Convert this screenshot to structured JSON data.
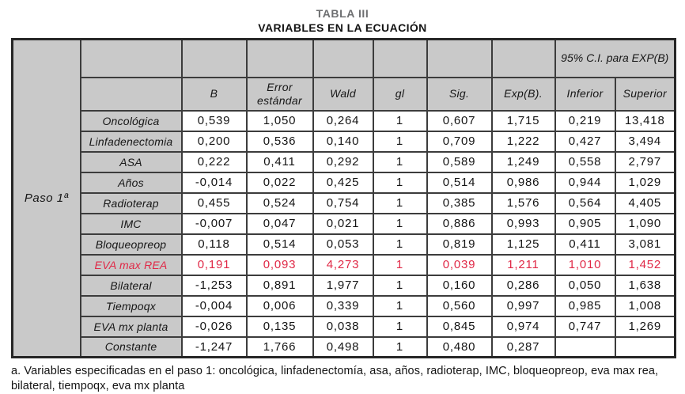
{
  "title": {
    "line1": "TABLA III",
    "line2": "VARIABLES EN LA ECUACIÓN"
  },
  "table": {
    "step_label": "Paso 1ª",
    "group_header": "95% C.I. para EXP(B)",
    "columns": [
      "B",
      "Error estándar",
      "Wald",
      "gl",
      "Sig.",
      "Exp(B).",
      "Inferior",
      "Superior"
    ],
    "rows": [
      {
        "label": "Oncológica",
        "values": [
          "0,539",
          "1,050",
          "0,264",
          "1",
          "0,607",
          "1,715",
          "0,219",
          "13,418"
        ],
        "highlight": false
      },
      {
        "label": "Linfadenectomia",
        "values": [
          "0,200",
          "0,536",
          "0,140",
          "1",
          "0,709",
          "1,222",
          "0,427",
          "3,494"
        ],
        "highlight": false
      },
      {
        "label": "ASA",
        "values": [
          "0,222",
          "0,411",
          "0,292",
          "1",
          "0,589",
          "1,249",
          "0,558",
          "2,797"
        ],
        "highlight": false
      },
      {
        "label": "Años",
        "values": [
          "-0,014",
          "0,022",
          "0,425",
          "1",
          "0,514",
          "0,986",
          "0,944",
          "1,029"
        ],
        "highlight": false
      },
      {
        "label": "Radioterap",
        "values": [
          "0,455",
          "0,524",
          "0,754",
          "1",
          "0,385",
          "1,576",
          "0,564",
          "4,405"
        ],
        "highlight": false
      },
      {
        "label": "IMC",
        "values": [
          "-0,007",
          "0,047",
          "0,021",
          "1",
          "0,886",
          "0,993",
          "0,905",
          "1,090"
        ],
        "highlight": false
      },
      {
        "label": "Bloqueopreop",
        "values": [
          "0,118",
          "0,514",
          "0,053",
          "1",
          "0,819",
          "1,125",
          "0,411",
          "3,081"
        ],
        "highlight": false
      },
      {
        "label": "EVA max REA",
        "values": [
          "0,191",
          "0,093",
          "4,273",
          "1",
          "0,039",
          "1,211",
          "1,010",
          "1,452"
        ],
        "highlight": true
      },
      {
        "label": "Bilateral",
        "values": [
          "-1,253",
          "0,891",
          "1,977",
          "1",
          "0,160",
          "0,286",
          "0,050",
          "1,638"
        ],
        "highlight": false
      },
      {
        "label": "Tiempoqx",
        "values": [
          "-0,004",
          "0,006",
          "0,339",
          "1",
          "0,560",
          "0,997",
          "0,985",
          "1,008"
        ],
        "highlight": false
      },
      {
        "label": "EVA mx planta",
        "values": [
          "-0,026",
          "0,135",
          "0,038",
          "1",
          "0,845",
          "0,974",
          "0,747",
          "1,269"
        ],
        "highlight": false
      },
      {
        "label": "Constante",
        "values": [
          "-1,247",
          "1,766",
          "0,498",
          "1",
          "0,480",
          "0,287",
          "",
          ""
        ],
        "highlight": false
      }
    ]
  },
  "footnote": "a. Variables especificadas en el paso 1: oncológica, linfadenectomía, asa, años, radioterap, IMC, bloqueopreop, eva max rea, bilateral, tiempoqx, eva mx planta",
  "colors": {
    "highlight_text": "#e02846",
    "cell_shade": "#c9c9c9",
    "border": "#3c3c3c"
  }
}
